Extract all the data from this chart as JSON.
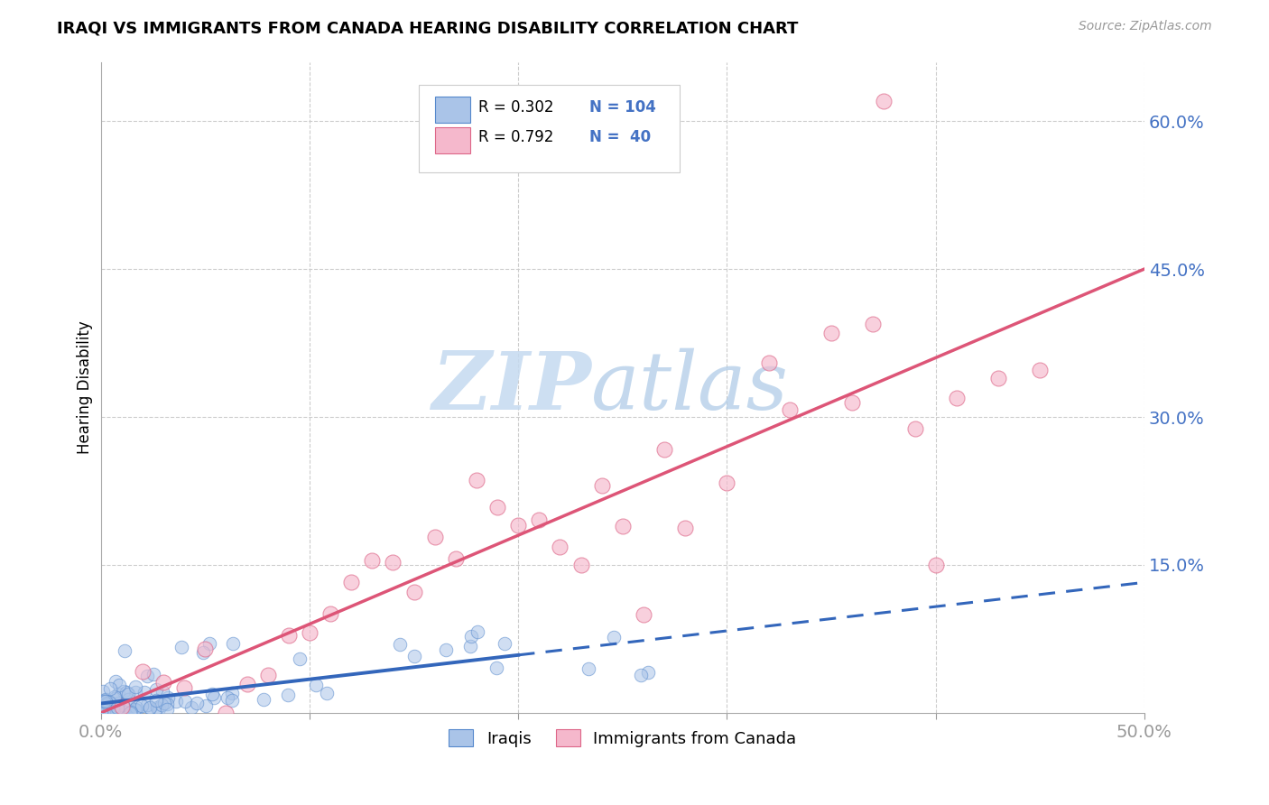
{
  "title": "IRAQI VS IMMIGRANTS FROM CANADA HEARING DISABILITY CORRELATION CHART",
  "source": "Source: ZipAtlas.com",
  "ylabel": "Hearing Disability",
  "xlim": [
    0.0,
    0.5
  ],
  "ylim": [
    0.0,
    0.66
  ],
  "blue_scatter_color": "#aac4e8",
  "blue_edge_color": "#5588cc",
  "blue_line_color": "#3366bb",
  "pink_scatter_color": "#f5b8cc",
  "pink_edge_color": "#dd6688",
  "pink_line_color": "#dd5577",
  "axis_label_color": "#4472C4",
  "grid_color": "#cccccc",
  "watermark_zip_color": "#c5daf0",
  "watermark_atlas_color": "#b0cce8"
}
